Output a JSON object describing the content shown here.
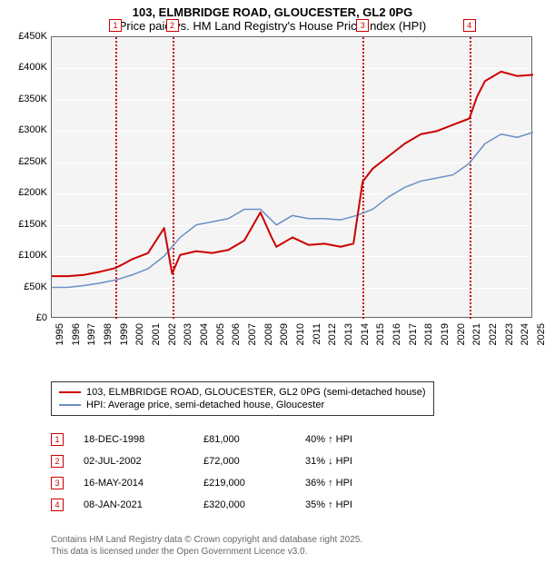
{
  "title": {
    "line1": "103, ELMBRIDGE ROAD, GLOUCESTER, GL2 0PG",
    "line2": "Price paid vs. HM Land Registry's House Price Index (HPI)"
  },
  "chart": {
    "type": "line",
    "background_color": "#f4f4f4",
    "grid_color": "#ffffff",
    "axis_font_size": 11,
    "x": {
      "min": 1995,
      "max": 2025,
      "tick_step": 1,
      "labels": [
        "1995",
        "1996",
        "1997",
        "1998",
        "1999",
        "2000",
        "2001",
        "2002",
        "2003",
        "2004",
        "2005",
        "2006",
        "2007",
        "2008",
        "2009",
        "2010",
        "2011",
        "2012",
        "2013",
        "2014",
        "2015",
        "2016",
        "2017",
        "2018",
        "2019",
        "2020",
        "2021",
        "2022",
        "2023",
        "2024",
        "2025"
      ]
    },
    "y": {
      "min": 0,
      "max": 450000,
      "tick_step": 50000,
      "labels": [
        "£0",
        "£50K",
        "£100K",
        "£150K",
        "£200K",
        "£250K",
        "£300K",
        "£350K",
        "£400K",
        "£450K"
      ]
    },
    "series_property": {
      "label": "103, ELMBRIDGE ROAD, GLOUCESTER, GL2 0PG (semi-detached house)",
      "color": "#cc0000",
      "width": 2,
      "data": [
        [
          1995,
          68000
        ],
        [
          1996,
          68000
        ],
        [
          1997,
          70000
        ],
        [
          1998,
          75000
        ],
        [
          1998.96,
          81000
        ],
        [
          1999.5,
          88000
        ],
        [
          2000,
          95000
        ],
        [
          2001,
          105000
        ],
        [
          2002,
          145000
        ],
        [
          2002.5,
          72000
        ],
        [
          2003,
          102000
        ],
        [
          2004,
          108000
        ],
        [
          2005,
          105000
        ],
        [
          2006,
          110000
        ],
        [
          2007,
          125000
        ],
        [
          2008,
          170000
        ],
        [
          2008.7,
          130000
        ],
        [
          2009,
          115000
        ],
        [
          2010,
          130000
        ],
        [
          2011,
          118000
        ],
        [
          2012,
          120000
        ],
        [
          2013,
          115000
        ],
        [
          2013.8,
          120000
        ],
        [
          2014.37,
          219000
        ],
        [
          2015,
          240000
        ],
        [
          2016,
          260000
        ],
        [
          2017,
          280000
        ],
        [
          2018,
          295000
        ],
        [
          2019,
          300000
        ],
        [
          2020,
          310000
        ],
        [
          2021.02,
          320000
        ],
        [
          2021.5,
          355000
        ],
        [
          2022,
          380000
        ],
        [
          2023,
          395000
        ],
        [
          2024,
          388000
        ],
        [
          2025,
          390000
        ]
      ]
    },
    "series_hpi": {
      "label": "HPI: Average price, semi-detached house, Gloucester",
      "color": "#6a8fc5",
      "width": 1.5,
      "data": [
        [
          1995,
          50000
        ],
        [
          1996,
          50000
        ],
        [
          1997,
          53000
        ],
        [
          1998,
          57000
        ],
        [
          1999,
          62000
        ],
        [
          2000,
          70000
        ],
        [
          2001,
          80000
        ],
        [
          2002,
          100000
        ],
        [
          2003,
          130000
        ],
        [
          2004,
          150000
        ],
        [
          2005,
          155000
        ],
        [
          2006,
          160000
        ],
        [
          2007,
          175000
        ],
        [
          2008,
          175000
        ],
        [
          2009,
          150000
        ],
        [
          2010,
          165000
        ],
        [
          2011,
          160000
        ],
        [
          2012,
          160000
        ],
        [
          2013,
          158000
        ],
        [
          2014,
          165000
        ],
        [
          2015,
          175000
        ],
        [
          2016,
          195000
        ],
        [
          2017,
          210000
        ],
        [
          2018,
          220000
        ],
        [
          2019,
          225000
        ],
        [
          2020,
          230000
        ],
        [
          2021,
          248000
        ],
        [
          2022,
          280000
        ],
        [
          2023,
          295000
        ],
        [
          2024,
          290000
        ],
        [
          2025,
          298000
        ]
      ]
    },
    "markers": [
      {
        "n": "1",
        "x": 1998.96
      },
      {
        "n": "2",
        "x": 2002.5
      },
      {
        "n": "3",
        "x": 2014.37
      },
      {
        "n": "4",
        "x": 2021.02
      }
    ]
  },
  "legend": {
    "items": [
      {
        "color": "#cc0000",
        "width": 2,
        "label": "103, ELMBRIDGE ROAD, GLOUCESTER, GL2 0PG (semi-detached house)"
      },
      {
        "color": "#6a8fc5",
        "width": 1.5,
        "label": "HPI: Average price, semi-detached house, Gloucester"
      }
    ]
  },
  "sales": [
    {
      "n": "1",
      "date": "18-DEC-1998",
      "price": "£81,000",
      "pct": "40% ↑ HPI"
    },
    {
      "n": "2",
      "date": "02-JUL-2002",
      "price": "£72,000",
      "pct": "31% ↓ HPI"
    },
    {
      "n": "3",
      "date": "16-MAY-2014",
      "price": "£219,000",
      "pct": "36% ↑ HPI"
    },
    {
      "n": "4",
      "date": "08-JAN-2021",
      "price": "£320,000",
      "pct": "35% ↑ HPI"
    }
  ],
  "footer": {
    "line1": "Contains HM Land Registry data © Crown copyright and database right 2025.",
    "line2": "This data is licensed under the Open Government Licence v3.0."
  }
}
